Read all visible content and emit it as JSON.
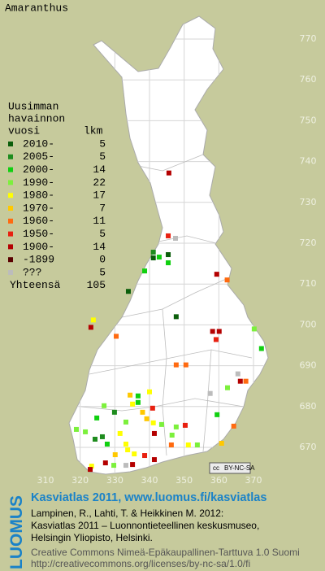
{
  "map": {
    "title": "Amaranthus",
    "legend": {
      "heading": [
        "Uusimman",
        "havainnon",
        "vuosi"
      ],
      "count_heading": "lkm",
      "entries": [
        {
          "label": "2010-",
          "count": 5,
          "color": "#0b5e0b",
          "points": [
            [
              345.4,
              717.2
            ],
            [
              341.1,
              716.4
            ],
            [
              333.9,
              708.2
            ],
            [
              347.7,
              702.0
            ]
          ]
        },
        {
          "label": "2005-",
          "count": 5,
          "color": "#1e8c1e",
          "points": [
            [
              341.1,
              717.8
            ],
            [
              329.9,
              678.6
            ],
            [
              326.4,
              672.6
            ],
            [
              324.3,
              672.0
            ]
          ]
        },
        {
          "label": "2000-",
          "count": 14,
          "color": "#10d010",
          "points": [
            [
              342.8,
              716.6
            ],
            [
              345.4,
              715.2
            ],
            [
              338.6,
              713.2
            ],
            [
              372.3,
              694.2
            ],
            [
              336.7,
              682.6
            ],
            [
              336.7,
              681.0
            ],
            [
              324.8,
              677.2
            ],
            [
              359.5,
              678.0
            ],
            [
              327.8,
              670.8
            ]
          ]
        },
        {
          "label": "1990-",
          "count": 22,
          "color": "#7cf03c",
          "points": [
            [
              370.2,
              699.0
            ],
            [
              362.5,
              684.6
            ],
            [
              326.9,
              680.2
            ],
            [
              333.2,
              676.2
            ],
            [
              343.5,
              675.6
            ],
            [
              318.9,
              674.4
            ],
            [
              347.7,
              675.0
            ],
            [
              321.5,
              673.8
            ],
            [
              346.5,
              673.0
            ],
            [
              353.8,
              670.6
            ],
            [
              329.7,
              665.6
            ]
          ]
        },
        {
          "label": "1980-",
          "count": 17,
          "color": "#ffff00",
          "points": [
            [
              323.8,
              701.2
            ],
            [
              340.0,
              683.6
            ],
            [
              335.1,
              680.6
            ],
            [
              341.1,
              676.0
            ],
            [
              331.5,
              673.4
            ],
            [
              333.2,
              670.8
            ],
            [
              351.2,
              670.6
            ],
            [
              333.7,
              669.4
            ],
            [
              335.6,
              668.4
            ],
            [
              323.3,
              665.4
            ]
          ]
        },
        {
          "label": "1970-",
          "count": 7,
          "color": "#ffc800",
          "points": [
            [
              334.4,
              682.8
            ],
            [
              338.0,
              678.6
            ],
            [
              339.2,
              677.0
            ],
            [
              360.8,
              671.0
            ],
            [
              330.1,
              668.2
            ]
          ]
        },
        {
          "label": "1960-",
          "count": 11,
          "color": "#ff6a10",
          "points": [
            [
              362.4,
              711.0
            ],
            [
              330.4,
              697.2
            ],
            [
              347.7,
              690.2
            ],
            [
              350.5,
              690.2
            ],
            [
              367.8,
              686.2
            ],
            [
              364.3,
              675.2
            ],
            [
              346.3,
              670.6
            ]
          ]
        },
        {
          "label": "1950-",
          "count": 5,
          "color": "#e82010",
          "points": [
            [
              345.4,
              721.8
            ],
            [
              359.2,
              696.4
            ],
            [
              340.9,
              679.6
            ],
            [
              350.3,
              675.4
            ],
            [
              338.6,
              668.0
            ]
          ]
        },
        {
          "label": "1900-",
          "count": 14,
          "color": "#b40000",
          "points": [
            [
              345.6,
              737.2
            ],
            [
              359.4,
              712.4
            ],
            [
              323.1,
              699.4
            ],
            [
              358.2,
              698.4
            ],
            [
              360.1,
              698.4
            ],
            [
              366.2,
              686.2
            ],
            [
              341.4,
              673.4
            ],
            [
              341.4,
              667.0
            ],
            [
              327.3,
              666.2
            ],
            [
              322.9,
              664.6
            ],
            [
              335.1,
              665.8
            ]
          ]
        },
        {
          "label": "-1899",
          "count": 0,
          "color": "#5a0000",
          "points": []
        },
        {
          "label": "???",
          "count": 5,
          "color": "#bcbcbc",
          "points": [
            [
              347.5,
              721.2
            ],
            [
              365.5,
              688.0
            ],
            [
              357.5,
              683.2
            ],
            [
              333.2,
              665.6
            ]
          ]
        }
      ],
      "total_label": "Yhteensä",
      "total": 105
    },
    "xticks": [
      310,
      320,
      330,
      340,
      350,
      360,
      370
    ],
    "yticks": [
      670,
      680,
      690,
      700,
      710,
      720,
      730,
      740,
      750,
      760,
      770
    ],
    "license_badge": [
      "cc",
      "BY-NC-SA"
    ],
    "footer": {
      "logo": "LUOMUS",
      "heading": "Kasviatlas 2011, www.luomus.fi/kasviatlas",
      "citation": [
        "Lampinen, R., Lahti, T. & Heikkinen M. 2012:",
        "Kasviatlas 2011 – Luonnontieteellinen keskusmuseo,",
        "Helsingin Yliopisto, Helsinki."
      ],
      "license": [
        "Creative Commons Nimeä-Epäkaupallinen-Tarttuva 1.0 Suomi",
        "http://creativecommons.org/licenses/by-nc-sa/1.0/fi"
      ]
    }
  }
}
